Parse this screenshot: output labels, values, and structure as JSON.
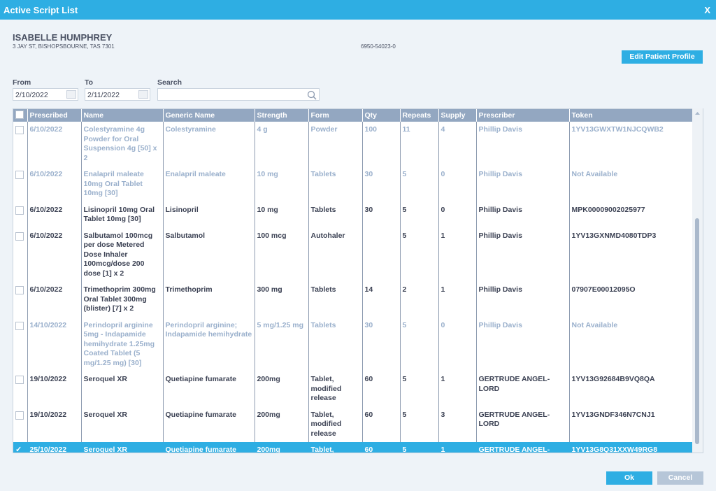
{
  "window": {
    "title": "Active Script List",
    "close": "X"
  },
  "patient": {
    "name": "ISABELLE HUMPHREY",
    "address": "3 JAY ST, BISHOPSBOURNE, TAS 7301",
    "id": "6950-54023-0"
  },
  "edit_button": "Edit Patient Profile",
  "filters": {
    "from_label": "From",
    "from": "2/10/2022",
    "to_label": "To",
    "to": "2/11/2022",
    "search_label": "Search"
  },
  "table": {
    "columns": [
      "Prescribed",
      "Name",
      "Generic Name",
      "Strength",
      "Form",
      "Qty",
      "Repeats",
      "Supply",
      "Prescriber",
      "Token"
    ],
    "rows": [
      [
        "6/10/2022",
        "Colestyramine 4g Powder for Oral Suspension 4g [50] x 2",
        "Colestyramine",
        "4 g",
        "Powder",
        "100",
        "11",
        "4",
        "Phillip Davis",
        "1YV13GWXTW1NJCQWB2"
      ],
      [
        "6/10/2022",
        "Enalapril maleate 10mg Oral Tablet 10mg [30]",
        "Enalapril maleate",
        "10 mg",
        "Tablets",
        "30",
        "5",
        "0",
        "Phillip Davis",
        "Not Available"
      ],
      [
        "6/10/2022",
        "Lisinopril 10mg Oral Tablet 10mg [30]",
        "Lisinopril",
        "10 mg",
        "Tablets",
        "30",
        "5",
        "0",
        "Phillip Davis",
        "MPK00009002025977"
      ],
      [
        "6/10/2022",
        "Salbutamol 100mcg per dose Metered Dose Inhaler 100mcg/dose 200 dose [1] x 2",
        "Salbutamol",
        "100 mcg",
        "Autohaler",
        null,
        "5",
        "1",
        "Phillip Davis",
        "1YV13GXNMD4080TDP3"
      ],
      [
        "6/10/2022",
        "Trimethoprim 300mg Oral Tablet 300mg (blister) [7] x 2",
        "Trimethoprim",
        "300 mg",
        "Tablets",
        "14",
        "2",
        "1",
        "Phillip Davis",
        "07907E00012095O"
      ],
      [
        "14/10/2022",
        "Perindopril arginine 5mg - Indapamide hemihydrate 1.25mg Coated Tablet (5 mg/1.25 mg) [30]",
        "Perindopril arginine; Indapamide hemihydrate",
        "5 mg/1.25 mg",
        "Tablets",
        "30",
        "5",
        "0",
        "Phillip Davis",
        "Not Available"
      ],
      [
        "19/10/2022",
        "Seroquel XR",
        "Quetiapine fumarate",
        "200mg",
        "Tablet, modified release",
        "60",
        "5",
        "1",
        "GERTRUDE ANGEL-LORD",
        "1YV13G92684B9VQ8QA"
      ],
      [
        "19/10/2022",
        "Seroquel XR",
        "Quetiapine fumarate",
        "200mg",
        "Tablet, modified release",
        "60",
        "5",
        "3",
        "GERTRUDE ANGEL-LORD",
        "1YV13GNDF346N7CNJ1"
      ],
      [
        "25/10/2022",
        "Seroquel XR",
        "Quetiapine fumarate",
        "200mg",
        "Tablet, modified release",
        "60",
        "5",
        "1",
        "GERTRUDE ANGEL-LORD",
        "1YV13G8Q31XXW49RG8"
      ]
    ]
  },
  "buttons": {
    "ok": "Ok",
    "cancel": "Cancel"
  }
}
